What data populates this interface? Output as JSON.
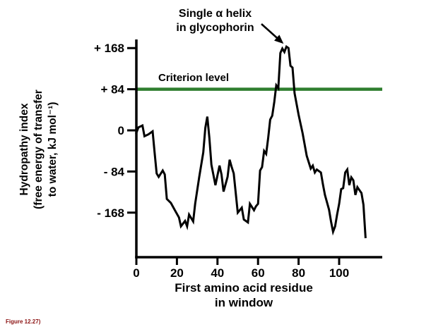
{
  "figure": {
    "annotation": {
      "line1": "Single α helix",
      "line2": "in glycophorin"
    },
    "criterion_label": "Criterion level",
    "y_axis_label_lines": [
      "Hydropathy index",
      "(free energy of transfer",
      "to water, kJ mol⁻¹)"
    ],
    "x_axis_label_lines": [
      "First amino acid residue",
      "in window"
    ],
    "caption": "Figure 12.27)"
  },
  "colors": {
    "criterion_line": "#2f7e2f",
    "curve": "#000000",
    "axis": "#000000",
    "caption": "#8b1212"
  },
  "chart_data": {
    "type": "line",
    "title": "",
    "xlabel": "First amino acid residue in window",
    "ylabel": "Hydropathy index (free energy of transfer to water, kJ mol⁻¹)",
    "xlim": [
      0,
      120
    ],
    "ylim": [
      -230,
      190
    ],
    "grid": false,
    "legend": "none",
    "x_ticks": [
      0,
      20,
      40,
      60,
      80,
      100
    ],
    "y_ticks": [
      168,
      84,
      0,
      -84,
      -168
    ],
    "y_tick_labels": [
      "+ 168",
      "+ 84",
      "0",
      "- 84",
      "- 168"
    ],
    "criterion_level": 84,
    "annotation": {
      "text": "Single α helix in glycophorin",
      "points_to": [
        74,
        171
      ]
    },
    "series": [
      {
        "name": "hydropathy",
        "points": [
          [
            0,
            -5
          ],
          [
            1,
            6
          ],
          [
            3,
            10
          ],
          [
            4,
            -12
          ],
          [
            6,
            -8
          ],
          [
            8,
            -2
          ],
          [
            9,
            -45
          ],
          [
            10,
            -88
          ],
          [
            11,
            -95
          ],
          [
            13,
            -82
          ],
          [
            14,
            -90
          ],
          [
            15,
            -140
          ],
          [
            17,
            -148
          ],
          [
            19,
            -163
          ],
          [
            21,
            -178
          ],
          [
            22,
            -196
          ],
          [
            24,
            -185
          ],
          [
            25,
            -196
          ],
          [
            26,
            -172
          ],
          [
            28,
            -186
          ],
          [
            29,
            -150
          ],
          [
            31,
            -95
          ],
          [
            33,
            -45
          ],
          [
            34,
            5
          ],
          [
            35,
            28
          ],
          [
            36,
            -15
          ],
          [
            37,
            -70
          ],
          [
            39,
            -112
          ],
          [
            41,
            -72
          ],
          [
            42,
            -90
          ],
          [
            43,
            -125
          ],
          [
            45,
            -95
          ],
          [
            46,
            -60
          ],
          [
            47,
            -75
          ],
          [
            48,
            -88
          ],
          [
            50,
            -168
          ],
          [
            52,
            -158
          ],
          [
            53,
            -182
          ],
          [
            55,
            -188
          ],
          [
            56,
            -150
          ],
          [
            58,
            -163
          ],
          [
            59,
            -155
          ],
          [
            60,
            -150
          ],
          [
            61,
            -82
          ],
          [
            62,
            -75
          ],
          [
            63,
            -42
          ],
          [
            64,
            -48
          ],
          [
            65,
            -15
          ],
          [
            66,
            22
          ],
          [
            67,
            30
          ],
          [
            68,
            58
          ],
          [
            69,
            92
          ],
          [
            70,
            86
          ],
          [
            71,
            158
          ],
          [
            72,
            167
          ],
          [
            73,
            160
          ],
          [
            74,
            171
          ],
          [
            75,
            168
          ],
          [
            76,
            132
          ],
          [
            77,
            128
          ],
          [
            78,
            76
          ],
          [
            80,
            32
          ],
          [
            82,
            -6
          ],
          [
            84,
            -52
          ],
          [
            86,
            -78
          ],
          [
            87,
            -72
          ],
          [
            88,
            -86
          ],
          [
            89,
            -80
          ],
          [
            91,
            -86
          ],
          [
            92,
            -110
          ],
          [
            93,
            -132
          ],
          [
            95,
            -162
          ],
          [
            96,
            -186
          ],
          [
            97,
            -207
          ],
          [
            98,
            -196
          ],
          [
            99,
            -172
          ],
          [
            100,
            -150
          ],
          [
            101,
            -120
          ],
          [
            102,
            -118
          ],
          [
            103,
            -86
          ],
          [
            104,
            -80
          ],
          [
            105,
            -112
          ],
          [
            106,
            -96
          ],
          [
            107,
            -102
          ],
          [
            108,
            -132
          ],
          [
            109,
            -116
          ],
          [
            110,
            -122
          ],
          [
            111,
            -128
          ],
          [
            112,
            -152
          ],
          [
            113,
            -218
          ]
        ]
      }
    ]
  }
}
